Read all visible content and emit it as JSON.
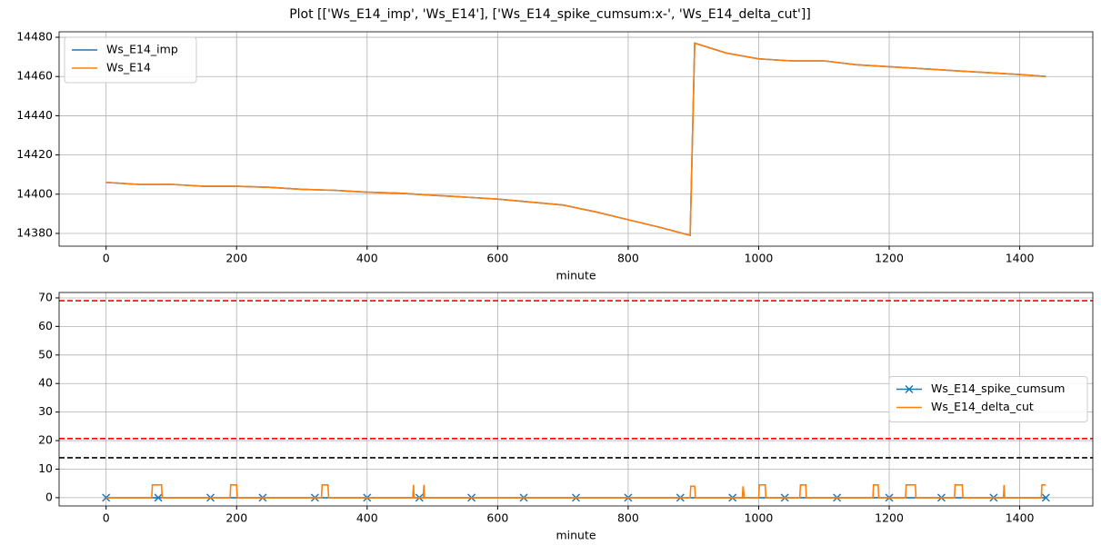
{
  "title": "Plot [['Ws_E14_imp', 'Ws_E14'], ['Ws_E14_spike_cumsum:x-', 'Ws_E14_delta_cut']]",
  "chart_data": [
    {
      "type": "line",
      "x_label": "minute",
      "xlim": [
        -72,
        1512
      ],
      "xticks": [
        0,
        200,
        400,
        600,
        800,
        1000,
        1200,
        1400
      ],
      "ylim": [
        14373.5,
        14482.8
      ],
      "yticks": [
        14380,
        14400,
        14420,
        14440,
        14460,
        14480
      ],
      "grid": true,
      "legend": "upper left",
      "series": [
        {
          "name": "Ws_E14_imp",
          "color": "#1f77b4",
          "marker": "none",
          "x": [
            0,
            50,
            100,
            150,
            200,
            250,
            300,
            350,
            400,
            450,
            500,
            550,
            600,
            650,
            700,
            750,
            800,
            850,
            895,
            902,
            950,
            1000,
            1050,
            1100,
            1150,
            1200,
            1250,
            1300,
            1350,
            1400,
            1440
          ],
          "values": [
            14406,
            14405,
            14405,
            14404,
            14404,
            14403.5,
            14402.5,
            14402,
            14401,
            14400.5,
            14399.5,
            14398.5,
            14397.5,
            14396,
            14394.5,
            14391,
            14387,
            14383,
            14379,
            14477,
            14472,
            14469,
            14468,
            14468,
            14466,
            14465,
            14464,
            14463,
            14462,
            14461,
            14460
          ]
        },
        {
          "name": "Ws_E14",
          "color": "#ff7f0e",
          "marker": "none",
          "x": [
            0,
            50,
            100,
            150,
            200,
            250,
            300,
            350,
            400,
            450,
            500,
            550,
            600,
            650,
            700,
            750,
            800,
            850,
            895,
            902,
            950,
            1000,
            1050,
            1100,
            1150,
            1200,
            1250,
            1300,
            1350,
            1400,
            1440
          ],
          "values": [
            14406,
            14405,
            14405,
            14404,
            14404,
            14403.5,
            14402.5,
            14402,
            14401,
            14400.5,
            14399.5,
            14398.5,
            14397.5,
            14396,
            14394.5,
            14391,
            14387,
            14383,
            14379,
            14477,
            14472,
            14469,
            14468,
            14468,
            14466,
            14465,
            14464,
            14463,
            14462,
            14461,
            14460
          ]
        }
      ]
    },
    {
      "type": "line",
      "x_label": "minute",
      "xlim": [
        -72,
        1512
      ],
      "xticks": [
        0,
        200,
        400,
        600,
        800,
        1000,
        1200,
        1400
      ],
      "ylim": [
        -2.9,
        71.9
      ],
      "yticks": [
        0,
        10,
        20,
        30,
        40,
        50,
        60,
        70
      ],
      "grid": true,
      "legend": "center right",
      "hlines": [
        {
          "value": 69,
          "color": "#ff0000"
        },
        {
          "value": 20.7,
          "color": "#ff0000"
        },
        {
          "value": 14,
          "color": "#000000"
        }
      ],
      "series": [
        {
          "name": "Ws_E14_spike_cumsum",
          "color": "#1f77b4",
          "marker": "x",
          "x": [
            0,
            80,
            160,
            240,
            320,
            400,
            480,
            560,
            640,
            720,
            800,
            880,
            960,
            1040,
            1120,
            1200,
            1280,
            1360,
            1440
          ],
          "values": [
            0,
            0,
            0,
            0,
            0,
            0,
            0,
            0,
            0,
            0,
            0,
            0,
            0,
            0,
            0,
            0,
            0,
            0,
            0
          ]
        },
        {
          "name": "Ws_E14_delta_cut",
          "color": "#ff7f0e",
          "marker": "none",
          "x": [
            0,
            70,
            71,
            85,
            86,
            190,
            191,
            200,
            201,
            330,
            331,
            340,
            341,
            470,
            471,
            472,
            486,
            487,
            488,
            895,
            896,
            902,
            903,
            975,
            976,
            978,
            1000,
            1001,
            1010,
            1011,
            1063,
            1064,
            1072,
            1073,
            1175,
            1176,
            1183,
            1184,
            1225,
            1226,
            1240,
            1241,
            1300,
            1301,
            1312,
            1313,
            1375,
            1376,
            1377,
            1433,
            1434,
            1440
          ],
          "values": [
            0,
            0,
            4.5,
            4.5,
            0,
            0,
            4.5,
            4.5,
            0,
            0,
            4.5,
            4.5,
            0,
            0,
            4.5,
            0,
            0,
            4.5,
            0,
            0,
            4,
            4,
            0,
            0,
            4,
            0,
            0,
            4.5,
            4.5,
            0,
            0,
            4.5,
            4.5,
            0,
            0,
            4.5,
            4.5,
            0,
            0,
            4.5,
            4.5,
            0,
            0,
            4.5,
            4.5,
            0,
            0,
            4.5,
            0,
            0,
            4.5,
            4.5
          ]
        }
      ]
    }
  ]
}
